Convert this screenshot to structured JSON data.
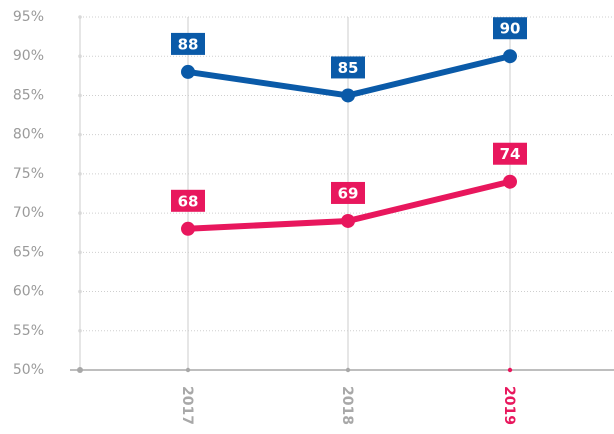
{
  "chart_data": {
    "type": "line",
    "categories": [
      "2017",
      "2018",
      "2019"
    ],
    "category_colors": [
      "#a8a8a8",
      "#a8a8a8",
      "#e8175d"
    ],
    "series": [
      {
        "name": null,
        "color": "#0a5aa8",
        "values": [
          88,
          85,
          90
        ]
      },
      {
        "name": null,
        "color": "#e8175d",
        "values": [
          68,
          69,
          74
        ]
      }
    ],
    "ylim": [
      50,
      95
    ],
    "yticks": [
      {
        "value": 50,
        "label": "50%"
      },
      {
        "value": 55,
        "label": "55%"
      },
      {
        "value": 60,
        "label": "60%"
      },
      {
        "value": 65,
        "label": "65%"
      },
      {
        "value": 70,
        "label": "70%"
      },
      {
        "value": 75,
        "label": "75%"
      },
      {
        "value": 80,
        "label": "80%"
      },
      {
        "value": 85,
        "label": "85%"
      },
      {
        "value": 90,
        "label": "90%"
      },
      {
        "value": 95,
        "label": "95%"
      }
    ],
    "grid": true
  }
}
